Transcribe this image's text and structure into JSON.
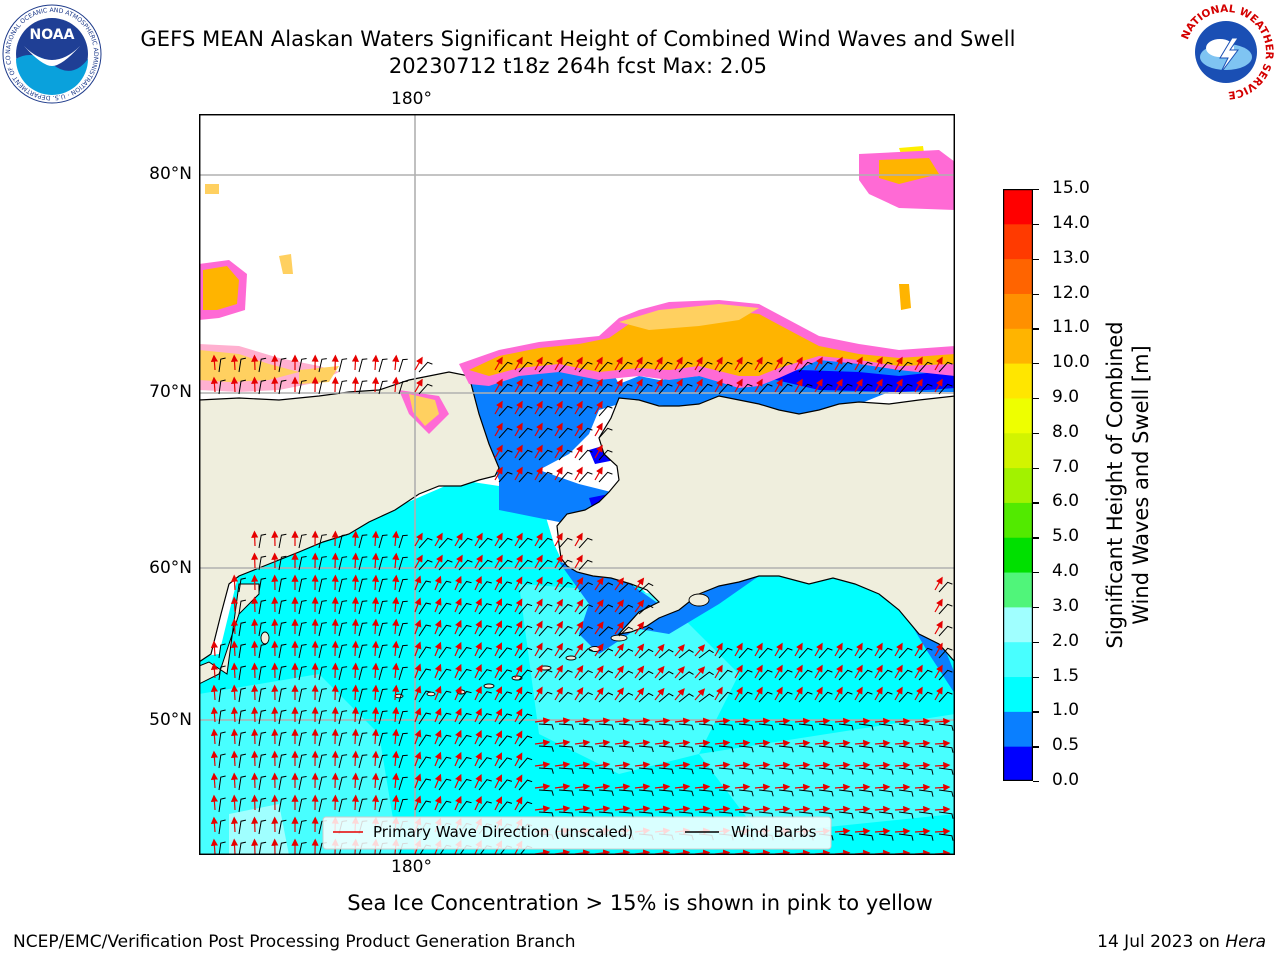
{
  "header": {
    "title": "GEFS MEAN Alaskan Waters Significant Height of Combined Wind Waves and Swell",
    "subtitle": "20230712 t18z 264h fcst   Max: 2.05"
  },
  "logos": {
    "left": {
      "name": "NOAA",
      "ring_text": "NATIONAL OCEANIC AND ATMOSPHERIC ADMINISTRATION · U.S. DEPARTMENT OF COMMERCE"
    },
    "right": {
      "ring_text": "NATIONAL WEATHER SERVICE"
    }
  },
  "map": {
    "lat_labels": [
      "80°N",
      "70°N",
      "60°N",
      "50°N"
    ],
    "lon_label_top": "180°",
    "lon_label_bottom": "180°",
    "legend": {
      "wave": "Primary Wave Direction (unscaled)",
      "wind": "Wind Barbs"
    },
    "colors": {
      "land": "#efeedd",
      "ocean_1": "#00ffff",
      "ocean_2": "#48ffff",
      "ocean_05": "#0a7fff",
      "ocean_0": "#0000ff",
      "wave_arrow": "#e60000"
    }
  },
  "colorbar": {
    "ticks": [
      "15.0",
      "14.0",
      "13.0",
      "12.0",
      "11.0",
      "10.0",
      "9.0",
      "8.0",
      "7.0",
      "6.0",
      "5.0",
      "4.0",
      "3.0",
      "2.0",
      "1.5",
      "1.0",
      "0.5",
      "0.0"
    ],
    "colors": [
      "#0000ff",
      "#0a7fff",
      "#00ffff",
      "#48ffff",
      "#a0ffff",
      "#50f57a",
      "#00e000",
      "#52ea00",
      "#a2f200",
      "#d2f400",
      "#eeff00",
      "#ffe600",
      "#ffb400",
      "#ff9000",
      "#ff6400",
      "#ff3a00",
      "#ff0000"
    ],
    "label_line1": "Significant Height of Combined",
    "label_line2": "Wind Waves and Swell [m]"
  },
  "note": "Sea Ice Concentration > 15% is shown in pink to yellow",
  "footer": {
    "left": "NCEP/EMC/Verification Post Processing Product Generation Branch",
    "date": "14 Jul 2023 on",
    "host": "Hera"
  }
}
